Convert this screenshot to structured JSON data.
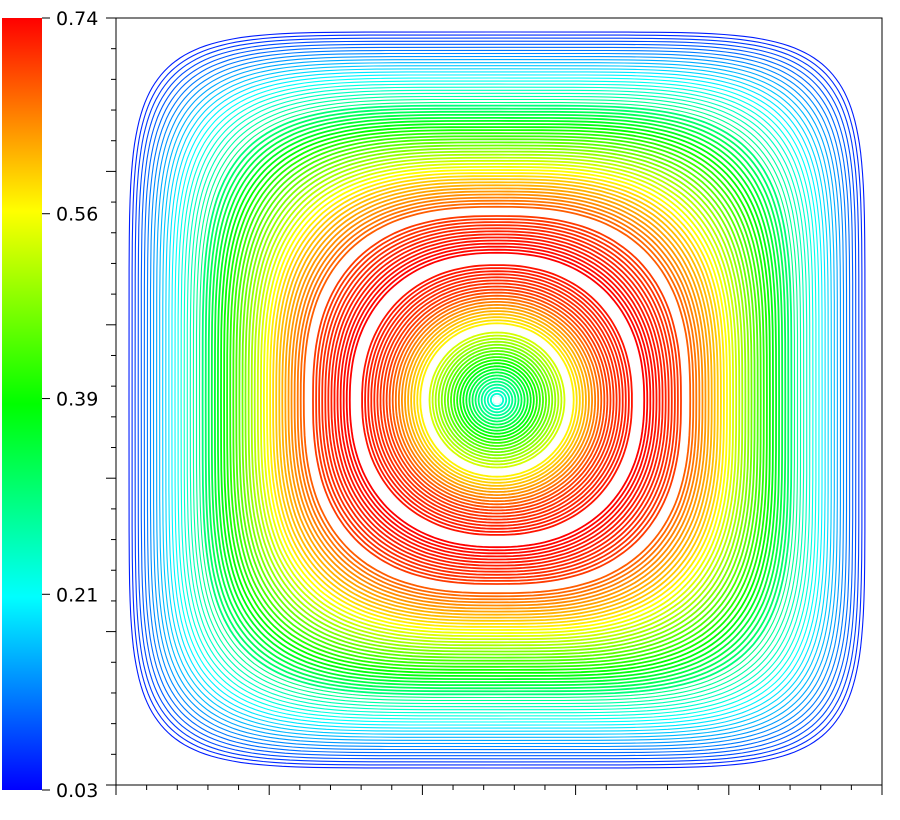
{
  "chart_data": {
    "type": "heatmap",
    "title": "",
    "xlabel": "",
    "ylabel": "",
    "grid": false,
    "legend": "colorbar-left",
    "colorbar": {
      "min": 0.03,
      "max": 0.74,
      "tick_labels": [
        "0.74",
        "0.56",
        "0.39",
        "0.21",
        "0.03"
      ],
      "tick_values": [
        0.74,
        0.56,
        0.39,
        0.21,
        0.03
      ],
      "colormap": [
        "#0000ff",
        "#00ffff",
        "#00ff00",
        "#ffff00",
        "#ff0000"
      ]
    },
    "streamlines": {
      "description_values": "speed magnitude along closed streamlines, normalized radius 0 (center) to 1 (domain edge)",
      "profile_radius": [
        0.0,
        0.1,
        0.2,
        0.3,
        0.4,
        0.5,
        0.6,
        0.7,
        0.8,
        0.9,
        1.0
      ],
      "profile_value": [
        0.21,
        0.39,
        0.56,
        0.7,
        0.74,
        0.7,
        0.6,
        0.45,
        0.3,
        0.18,
        0.05
      ]
    },
    "x_axis": {
      "major_ticks": 6,
      "minor_per_major": 4,
      "tick_labels": []
    },
    "y_axis": {
      "major_ticks": 6,
      "minor_per_major": 4,
      "tick_labels": []
    }
  }
}
